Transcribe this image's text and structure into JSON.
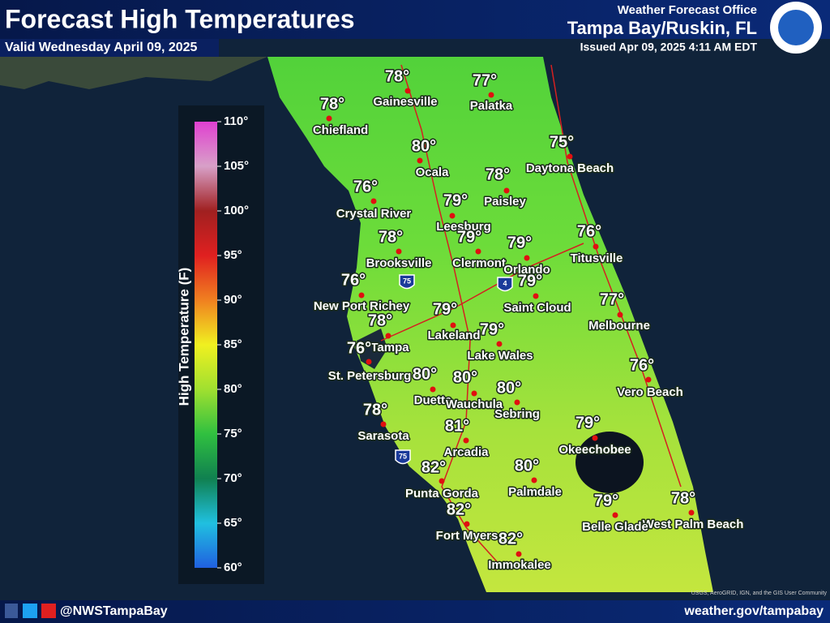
{
  "header": {
    "title": "Forecast High Temperatures",
    "valid": "Valid Wednesday April 09, 2025",
    "office": "Weather Forecast Office",
    "location": "Tampa Bay/Ruskin, FL",
    "issued": "Issued Apr 09, 2025 4:11 AM EDT"
  },
  "legend": {
    "label": "High Temperature (F)",
    "lim": [
      60,
      110
    ],
    "ticks": [
      {
        "value": 110,
        "label": "110°"
      },
      {
        "value": 105,
        "label": "105°"
      },
      {
        "value": 100,
        "label": "100°"
      },
      {
        "value": 95,
        "label": "95°"
      },
      {
        "value": 90,
        "label": "90°"
      },
      {
        "value": 85,
        "label": "85°"
      },
      {
        "value": 80,
        "label": "80°"
      },
      {
        "value": 75,
        "label": "75°"
      },
      {
        "value": 70,
        "label": "70°"
      },
      {
        "value": 65,
        "label": "65°"
      },
      {
        "value": 60,
        "label": "60°"
      }
    ]
  },
  "cities": [
    {
      "name": "Gainesville",
      "temp": "78°"
    },
    {
      "name": "Palatka",
      "temp": "77°"
    },
    {
      "name": "Chiefland",
      "temp": "78°"
    },
    {
      "name": "Ocala",
      "temp": "80°"
    },
    {
      "name": "Daytona Beach",
      "temp": "75°"
    },
    {
      "name": "Paisley",
      "temp": "78°"
    },
    {
      "name": "Crystal River",
      "temp": "76°"
    },
    {
      "name": "Leesburg",
      "temp": "79°"
    },
    {
      "name": "Clermont",
      "temp": "79°"
    },
    {
      "name": "Orlando",
      "temp": "79°"
    },
    {
      "name": "Brooksville",
      "temp": "78°"
    },
    {
      "name": "Titusville",
      "temp": "76°"
    },
    {
      "name": "New Port Richey",
      "temp": "76°"
    },
    {
      "name": "Saint Cloud",
      "temp": "79°"
    },
    {
      "name": "Lakeland",
      "temp": "79°"
    },
    {
      "name": "Melbourne",
      "temp": "77°"
    },
    {
      "name": "Tampa",
      "temp": "78°"
    },
    {
      "name": "Lake Wales",
      "temp": "79°"
    },
    {
      "name": "St. Petersburg",
      "temp": "76°"
    },
    {
      "name": "Vero Beach",
      "temp": "76°"
    },
    {
      "name": "Duette",
      "temp": "80°"
    },
    {
      "name": "Wauchula",
      "temp": "80°"
    },
    {
      "name": "Sebring",
      "temp": "80°"
    },
    {
      "name": "Sarasota",
      "temp": "78°"
    },
    {
      "name": "Arcadia",
      "temp": "81°"
    },
    {
      "name": "Okeechobee",
      "temp": "79°"
    },
    {
      "name": "Punta Gorda",
      "temp": "82°"
    },
    {
      "name": "Palmdale",
      "temp": "80°"
    },
    {
      "name": "West Palm Beach",
      "temp": "78°"
    },
    {
      "name": "Belle Glade",
      "temp": "79°"
    },
    {
      "name": "Fort Myers",
      "temp": "82°"
    },
    {
      "name": "Immokalee",
      "temp": "82°"
    }
  ],
  "shields": [
    "75",
    "4",
    "75"
  ],
  "attribution": "USGS, AeroGRID, IGN, and the GIS User Community",
  "footer": {
    "handle": "@NWSTampaBay",
    "url": "weather.gov/tampabay"
  }
}
